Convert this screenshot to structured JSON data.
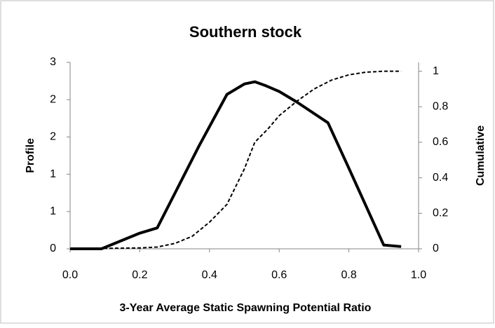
{
  "chart_data": {
    "type": "line",
    "title": "Southern stock",
    "x_label": "3-Year Average Static Spawning Potential Ratio",
    "y_label": "Profile",
    "y2_label": "Cumulative",
    "xlim": [
      0,
      1
    ],
    "xticks": [
      {
        "value": 0,
        "label": "0.0"
      },
      {
        "value": 0.2,
        "label": "0.2"
      },
      {
        "value": 0.4,
        "label": "0.4"
      },
      {
        "value": 0.6,
        "label": "0.6"
      },
      {
        "value": 0.8,
        "label": "0.8"
      },
      {
        "value": 1,
        "label": "1.0"
      }
    ],
    "ylim": [
      0,
      2.5
    ],
    "yticks": [
      0,
      {
        "value": 0.5,
        "label": "1"
      },
      1,
      {
        "value": 1.5,
        "label": "2"
      },
      2,
      {
        "value": 2.5,
        "label": "3"
      }
    ],
    "y2lim": [
      0,
      1.05
    ],
    "y2ticks": [
      0,
      0.2,
      0.4,
      0.6,
      0.8,
      1
    ],
    "series": [
      {
        "name": "Profile",
        "color": "#000000",
        "style": "solid",
        "x": [
          0,
          0.09,
          0.2,
          0.25,
          0.37,
          0.45,
          0.5,
          0.53,
          0.56,
          0.6,
          0.65,
          0.74,
          0.8,
          0.9,
          0.95
        ],
        "values": [
          0,
          0,
          0.21,
          0.28,
          1.38,
          2.07,
          2.21,
          2.24,
          2.19,
          2.11,
          1.97,
          1.69,
          1.08,
          0.05,
          0.03
        ]
      },
      {
        "name": "Cumulative",
        "color": "#000000",
        "style": "dashed",
        "axis": "y2",
        "x": [
          0,
          0.2,
          0.25,
          0.3,
          0.35,
          0.4,
          0.45,
          0.5,
          0.53,
          0.57,
          0.6,
          0.65,
          0.7,
          0.75,
          0.8,
          0.85,
          0.9,
          0.95
        ],
        "values": [
          0,
          0.005,
          0.01,
          0.03,
          0.07,
          0.15,
          0.25,
          0.45,
          0.6,
          0.68,
          0.75,
          0.83,
          0.9,
          0.95,
          0.98,
          0.995,
          1,
          1
        ]
      }
    ]
  }
}
